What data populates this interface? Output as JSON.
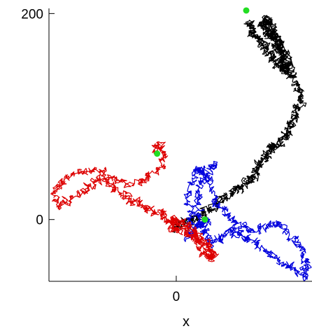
{
  "chart_data": {
    "type": "line",
    "title": "",
    "xlabel": "x",
    "ylabel": "",
    "xlim": [
      -120,
      128
    ],
    "ylim": [
      -60,
      205
    ],
    "x_ticks": [
      0
    ],
    "y_ticks": [
      0,
      200
    ],
    "x_tick_labels": [
      "0"
    ],
    "y_tick_labels": [
      "0",
      "200"
    ],
    "grid": false,
    "legend": "none",
    "marker_color": "#22dd22",
    "series": [
      {
        "color": "#000000",
        "x": [
          -3,
          2,
          8,
          15,
          22,
          30,
          37,
          45,
          52,
          60,
          67,
          72,
          75,
          80,
          84,
          88,
          94,
          100,
          104,
          108,
          112,
          115,
          118,
          114,
          110,
          106,
          103,
          100,
          98,
          96,
          94,
          92,
          90,
          88,
          86,
          84,
          82,
          84,
          88,
          92,
          96,
          100,
          104,
          106,
          102,
          98,
          94,
          90,
          86,
          80,
          74,
          72,
          68
        ],
        "y": [
          -8,
          -5,
          -2,
          0,
          3,
          8,
          14,
          22,
          28,
          30,
          34,
          40,
          48,
          55,
          60,
          66,
          72,
          78,
          84,
          90,
          100,
          110,
          122,
          132,
          140,
          146,
          150,
          155,
          160,
          166,
          172,
          176,
          178,
          180,
          182,
          186,
          190,
          194,
          192,
          186,
          178,
          168,
          158,
          150,
          145,
          148,
          154,
          160,
          166,
          172,
          178,
          185,
          190
        ]
      },
      {
        "color": "#0000dd",
        "x": [
          28,
          24,
          18,
          12,
          14,
          10,
          18,
          26,
          30,
          36,
          46,
          56,
          70,
          84,
          96,
          106,
          118,
          126,
          122,
          110,
          96,
          82,
          70,
          60,
          50,
          40,
          32,
          26,
          22,
          20,
          24,
          30,
          36
        ],
        "y": [
          -2,
          -4,
          -10,
          -18,
          2,
          25,
          45,
          52,
          38,
          20,
          6,
          -4,
          -10,
          -8,
          -2,
          -18,
          -28,
          -42,
          -55,
          -48,
          -38,
          -30,
          -20,
          -14,
          -12,
          -18,
          -22,
          -12,
          0,
          15,
          30,
          45,
          55
        ]
      },
      {
        "color": "#dd0000",
        "x": [
          -20,
          -15,
          -10,
          -18,
          -30,
          -45,
          -60,
          -75,
          -90,
          -105,
          -115,
          -110,
          -98,
          -85,
          -72,
          -60,
          -50,
          -40,
          -30,
          -20,
          -10,
          -5,
          0,
          8,
          15,
          22,
          28,
          32,
          35,
          30,
          25,
          20,
          15,
          8,
          0,
          -5
        ],
        "y": [
          66,
          72,
          60,
          48,
          38,
          32,
          40,
          48,
          46,
          42,
          28,
          15,
          22,
          30,
          38,
          34,
          26,
          18,
          12,
          8,
          2,
          -4,
          -8,
          -12,
          -18,
          -24,
          -32,
          -38,
          -32,
          -24,
          -20,
          -16,
          -10,
          -4,
          -2,
          0
        ]
      }
    ],
    "markers": [
      {
        "x": -18,
        "y": 64
      },
      {
        "x": 27,
        "y": 0
      },
      {
        "x": 66,
        "y": 203
      }
    ]
  }
}
